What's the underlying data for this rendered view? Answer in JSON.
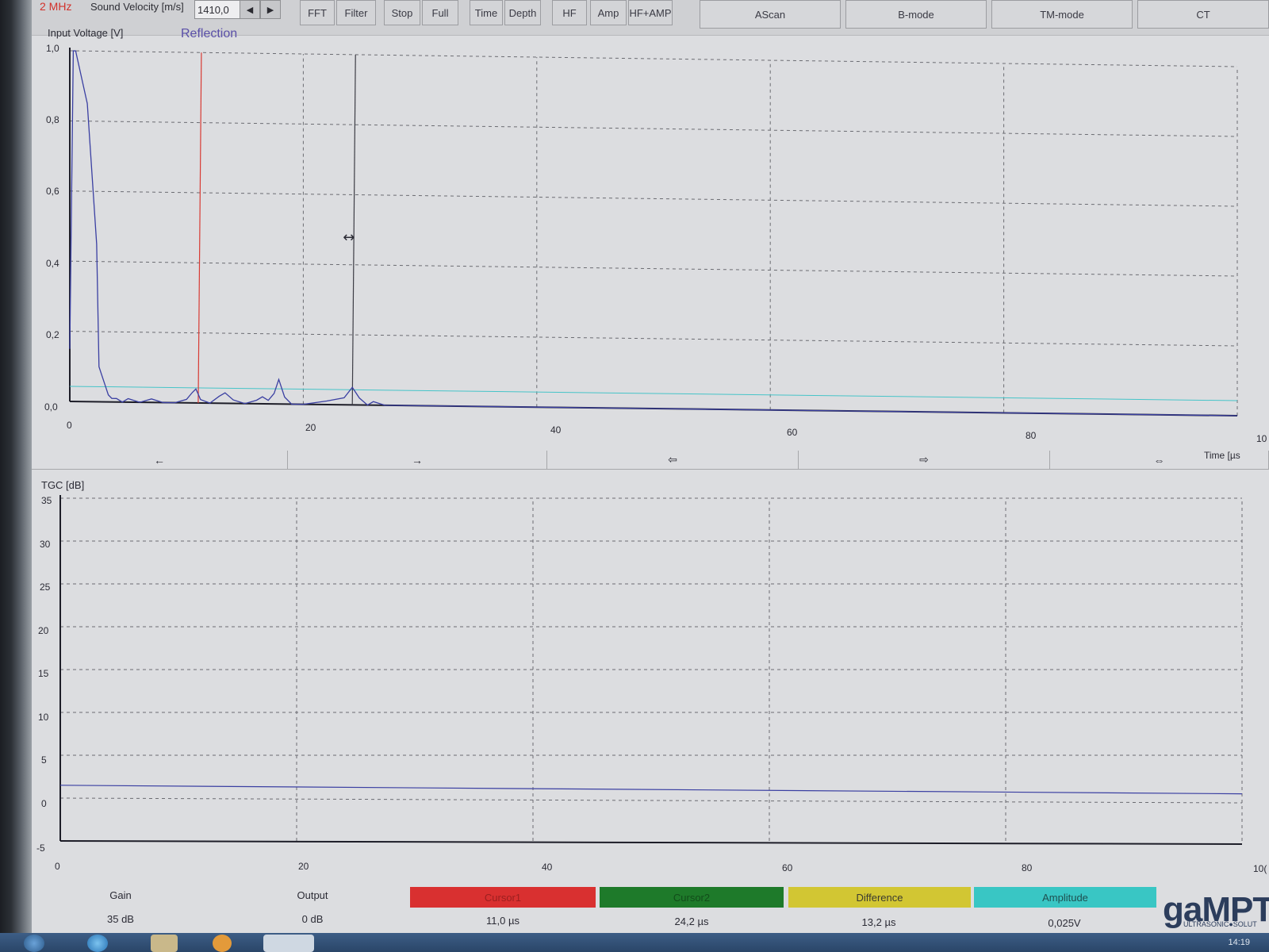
{
  "toolbar": {
    "frequency": "2 MHz",
    "sound_velocity_label": "Sound Velocity [m/s]",
    "sound_velocity_value": "1410,0",
    "arrow_left": "◀",
    "arrow_right": "▶",
    "buttons": [
      "FFT",
      "Filter",
      "Stop",
      "Full",
      "Time",
      "Depth",
      "HF",
      "Amp",
      "HF+AMP"
    ],
    "mode_tabs": [
      "AScan",
      "B-mode",
      "TM-mode",
      "CT"
    ]
  },
  "ascan": {
    "ylabel": "Input Voltage [V]",
    "mode": "Reflection",
    "yticks": [
      "1,0",
      "0,8",
      "0,6",
      "0,4",
      "0,2",
      "0,0"
    ],
    "xticks": [
      "0",
      "20",
      "40",
      "60",
      "80",
      "10"
    ],
    "xunit": "Time [µs"
  },
  "nav": [
    "←",
    "→",
    "⇦",
    "⇨",
    "⇔"
  ],
  "tgc": {
    "ylabel": "TGC [dB]",
    "yticks": [
      "35",
      "30",
      "25",
      "20",
      "15",
      "10",
      "5",
      "0",
      "-5"
    ],
    "xticks": [
      "0",
      "20",
      "40",
      "60",
      "80",
      "10("
    ]
  },
  "status": {
    "gain_label": "Gain",
    "gain_value": "35 dB",
    "output_label": "Output",
    "output_value": "0 dB",
    "cursor1_label": "Cursor1",
    "cursor1_value": "11,0 µs",
    "cursor2_label": "Cursor2",
    "cursor2_value": "24,2 µs",
    "difference_label": "Difference",
    "difference_value": "13,2 µs",
    "amplitude_label": "Amplitude",
    "amplitude_value": "0,025V",
    "colors": {
      "cursor1": "#d93030",
      "cursor2": "#1e7a2a",
      "difference": "#d2c633",
      "amplitude": "#39c6c4"
    }
  },
  "brand": {
    "logo": "gaMPT",
    "tagline": "ULTRASONIC●SOLUT"
  },
  "taskbar": {
    "clock": "14:19"
  },
  "chart_data": [
    {
      "type": "line",
      "title": "",
      "ylabel": "Input Voltage [V]",
      "xlabel": "Time [µs",
      "xlim": [
        0,
        100
      ],
      "ylim": [
        0,
        1.0
      ],
      "series": [
        {
          "x": [
            0,
            0.3,
            0.5,
            1.5,
            2.0,
            2.3,
            2.5,
            3.0,
            3.3,
            3.6,
            4.0,
            4.5,
            5.0,
            6,
            7,
            8,
            9,
            10,
            10.5,
            10.8,
            11.2,
            12,
            12.8,
            13.3,
            14,
            15,
            16,
            16.5,
            17,
            17.5,
            17.9,
            18.4,
            19,
            20,
            22,
            23.5,
            24.2,
            24.8,
            25.5,
            26,
            27,
            30,
            40,
            50,
            60,
            70,
            80,
            90,
            100
          ],
          "y": [
            0.15,
            1.0,
            1.0,
            0.85,
            0.6,
            0.45,
            0.1,
            0.05,
            0.02,
            0.01,
            0.01,
            0.0,
            0.01,
            0.0,
            0.01,
            0.0,
            0.0,
            0.01,
            0.03,
            0.04,
            0.01,
            0.0,
            0.02,
            0.03,
            0.01,
            0.0,
            0.01,
            0.02,
            0.01,
            0.03,
            0.07,
            0.02,
            0.0,
            0.0,
            0.01,
            0.02,
            0.05,
            0.02,
            0.0,
            0.01,
            0.0,
            0.0,
            0.0,
            0.0,
            0.0,
            0.0,
            0.0,
            0.0,
            0.0
          ]
        }
      ],
      "annotations": [
        {
          "label": "Cursor1",
          "x": 11.0
        },
        {
          "label": "Cursor2",
          "x": 24.2
        },
        {
          "label": "Amplitude",
          "y": 0.025
        }
      ],
      "grid": true
    },
    {
      "type": "line",
      "title": "",
      "ylabel": "TGC [dB]",
      "xlabel": "",
      "xlim": [
        0,
        100
      ],
      "ylim": [
        -5,
        35
      ],
      "series": [
        {
          "x": [
            0,
            100
          ],
          "y": [
            1.5,
            0.5
          ]
        }
      ],
      "grid": true
    }
  ]
}
